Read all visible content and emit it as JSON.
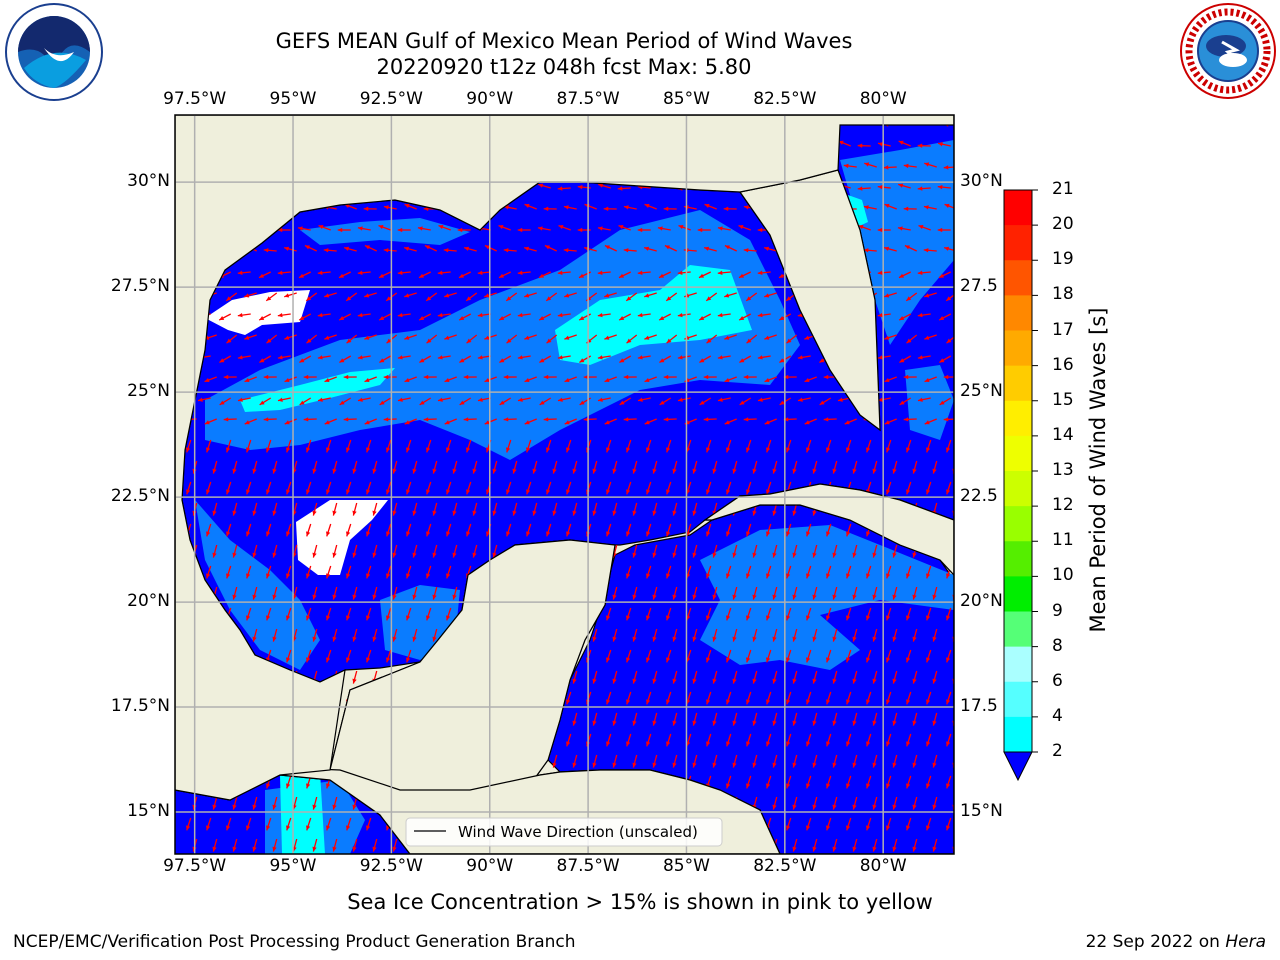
{
  "header": {
    "title_line1": "GEFS MEAN Gulf of Mexico Mean Period of Wind Waves",
    "title_line2": "20220920 t12z 048h fcst   Max: 5.80"
  },
  "map": {
    "lon_labels": [
      "97.5°W",
      "95°W",
      "92.5°W",
      "90°W",
      "87.5°W",
      "85°W",
      "82.5°W",
      "80°W"
    ],
    "lat_labels_left": [
      "30°N",
      "27.5°N",
      "25°N",
      "22.5°N",
      "20°N",
      "17.5°N",
      "15°N"
    ],
    "lat_labels_right": [
      "30°N",
      "27.5",
      "25°N",
      "22.5",
      "20°N",
      "17.5",
      "15°N"
    ],
    "lon_range": [
      -98,
      -78.2
    ],
    "lat_range": [
      14,
      31.6
    ],
    "lon_ticks": [
      -97.5,
      -95,
      -92.5,
      -90,
      -87.5,
      -85,
      -82.5,
      -80
    ],
    "lat_ticks": [
      30,
      27.5,
      25,
      22.5,
      20,
      17.5,
      15
    ],
    "legend_label": "Wind Wave Direction (unscaled)",
    "colors": {
      "land": "#efefdc",
      "water_low": "#0000ff",
      "band_2_4": "#0a7cff",
      "band_4_6": "#00ffff",
      "arrow": "#ff0000",
      "grid": "#b0b0b0"
    }
  },
  "colorbar": {
    "title": "Mean Period of Wind Waves [s]",
    "levels": [
      "21",
      "20",
      "19",
      "18",
      "17",
      "16",
      "15",
      "14",
      "13",
      "12",
      "11",
      "10",
      "9",
      "8",
      "6",
      "4",
      "2"
    ],
    "colors": [
      "#ff0000",
      "#ff2200",
      "#ff5500",
      "#ff8800",
      "#ffaa00",
      "#ffcc00",
      "#ffee00",
      "#eeff00",
      "#ccff00",
      "#99ff00",
      "#55ee00",
      "#00ee00",
      "#55ff77",
      "#aaffff",
      "#55ffff",
      "#00ffff",
      "#0a7cff"
    ],
    "extend_color": "#0000ff"
  },
  "notes": {
    "ice": "Sea Ice Concentration > 15% is shown in pink to yellow"
  },
  "footer": {
    "left": "NCEP/EMC/Verification Post Processing Product Generation Branch",
    "date": "22 Sep 2022 on",
    "machine": "Hera"
  }
}
